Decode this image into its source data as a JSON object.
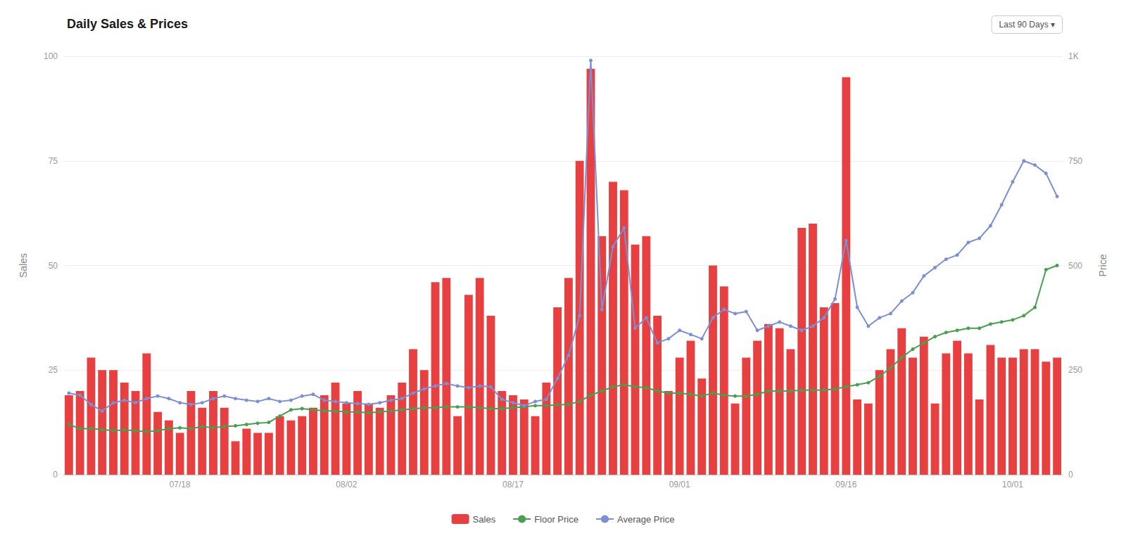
{
  "chart_data": {
    "type": "bar",
    "title": "Daily Sales & Prices",
    "y_label": "Sales",
    "y2_label": "Price",
    "annotations": [
      "Last 90 Days ▾"
    ],
    "categories": [
      null,
      null,
      null,
      null,
      null,
      null,
      null,
      null,
      null,
      null,
      "07/18",
      null,
      null,
      null,
      null,
      null,
      null,
      null,
      null,
      null,
      null,
      null,
      null,
      null,
      null,
      "08/02",
      null,
      null,
      null,
      null,
      null,
      null,
      null,
      null,
      null,
      null,
      null,
      null,
      null,
      null,
      "08/17",
      null,
      null,
      null,
      null,
      null,
      null,
      null,
      null,
      null,
      null,
      null,
      null,
      null,
      null,
      "09/01",
      null,
      null,
      null,
      null,
      null,
      null,
      null,
      null,
      null,
      null,
      null,
      null,
      null,
      null,
      "09/16",
      null,
      null,
      null,
      null,
      null,
      null,
      null,
      null,
      null,
      null,
      null,
      null,
      null,
      null,
      "10/01",
      null,
      null,
      null,
      null
    ],
    "ylim": [
      0,
      100
    ],
    "yticks": [
      0,
      25,
      50,
      75,
      100
    ],
    "y2lim": [
      0,
      1000
    ],
    "y2ticks": [
      0,
      250,
      500,
      750,
      {
        "value": 1000,
        "label": "1K"
      }
    ],
    "grid": true,
    "legend": "bottom",
    "series": [
      {
        "name": "Sales",
        "type": "bar",
        "color": "#E84040",
        "axis": "y",
        "values": [
          19,
          20,
          28,
          25,
          25,
          22,
          20,
          29,
          15,
          13,
          10,
          20,
          16,
          20,
          16,
          8,
          11,
          10,
          10,
          14,
          13,
          14,
          16,
          19,
          22,
          17,
          20,
          17,
          16,
          19,
          22,
          30,
          25,
          46,
          47,
          14,
          43,
          47,
          38,
          20,
          19,
          18,
          14,
          22,
          40,
          47,
          75,
          97,
          57,
          70,
          68,
          55,
          57,
          38,
          20,
          28,
          32,
          23,
          50,
          45,
          17,
          28,
          32,
          36,
          35,
          30,
          59,
          60,
          40,
          41,
          95,
          18,
          17,
          25,
          30,
          35,
          28,
          33,
          17,
          29,
          32,
          29,
          18,
          31,
          28,
          28,
          30,
          30,
          27,
          28
        ]
      },
      {
        "name": "Floor Price",
        "type": "line",
        "color": "#4a9e50",
        "axis": "y2",
        "marker": "circle",
        "values": [
          120,
          110,
          110,
          108,
          105,
          107,
          105,
          103,
          105,
          110,
          112,
          110,
          115,
          112,
          115,
          117,
          120,
          123,
          125,
          140,
          155,
          158,
          155,
          153,
          152,
          150,
          150,
          148,
          150,
          152,
          155,
          157,
          160,
          160,
          162,
          162,
          162,
          160,
          158,
          158,
          160,
          162,
          165,
          165,
          167,
          168,
          175,
          190,
          200,
          210,
          215,
          210,
          208,
          200,
          195,
          195,
          192,
          188,
          195,
          190,
          188,
          188,
          192,
          200,
          200,
          200,
          202,
          202,
          202,
          205,
          210,
          215,
          220,
          235,
          255,
          280,
          300,
          315,
          330,
          340,
          345,
          350,
          350,
          360,
          365,
          370,
          380,
          400,
          490,
          500
        ]
      },
      {
        "name": "Average Price",
        "type": "line",
        "color": "#7b8fd4",
        "axis": "y2",
        "marker": "circle",
        "values": [
          195,
          190,
          168,
          152,
          172,
          178,
          172,
          182,
          188,
          182,
          172,
          168,
          172,
          182,
          188,
          182,
          178,
          175,
          182,
          175,
          178,
          188,
          192,
          178,
          175,
          172,
          170,
          168,
          172,
          178,
          182,
          195,
          205,
          212,
          218,
          212,
          208,
          212,
          210,
          180,
          172,
          165,
          175,
          180,
          230,
          285,
          380,
          990,
          395,
          545,
          590,
          350,
          375,
          315,
          325,
          345,
          335,
          325,
          375,
          395,
          385,
          390,
          345,
          355,
          365,
          355,
          345,
          355,
          375,
          420,
          560,
          400,
          355,
          375,
          385,
          415,
          435,
          475,
          495,
          515,
          525,
          555,
          565,
          595,
          645,
          700,
          750,
          740,
          720,
          665
        ]
      }
    ]
  }
}
